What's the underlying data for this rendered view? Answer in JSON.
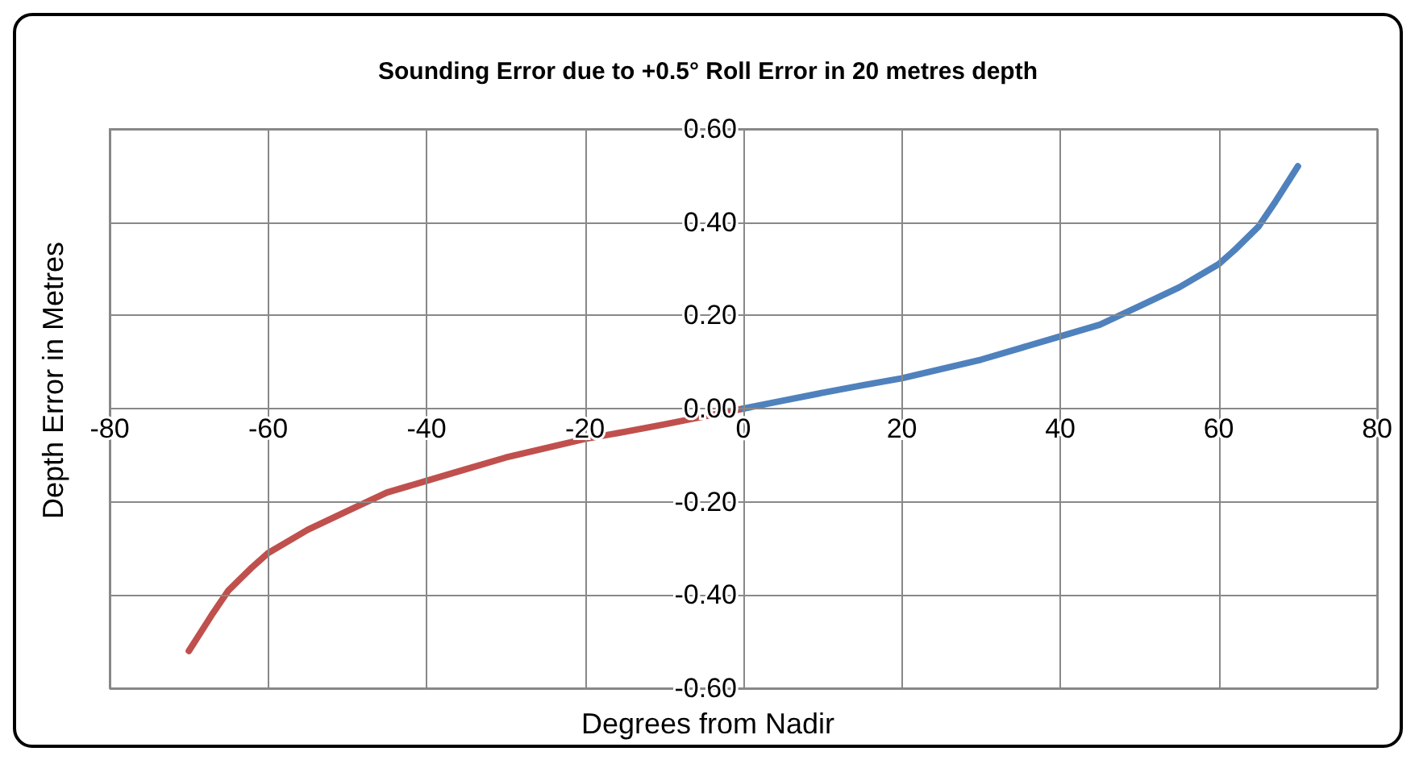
{
  "chart_data": {
    "type": "line",
    "title": "Sounding Error due to +0.5° Roll Error in 20 metres depth",
    "xlabel": "Degrees from Nadir",
    "ylabel": "Depth Error in Metres",
    "series": [
      {
        "color": "#c0504d",
        "x": [
          -70,
          -67,
          -65,
          -62,
          -60,
          -55,
          -50,
          -45,
          -40,
          -35,
          -30,
          -25,
          -20,
          -15,
          -10,
          -5,
          0
        ],
        "values": [
          -0.52,
          -0.44,
          -0.39,
          -0.34,
          -0.31,
          -0.26,
          -0.22,
          -0.18,
          -0.155,
          -0.13,
          -0.105,
          -0.085,
          -0.065,
          -0.05,
          -0.034,
          -0.017,
          0
        ]
      },
      {
        "color": "#4f81bd",
        "x": [
          0,
          5,
          10,
          15,
          20,
          25,
          30,
          35,
          40,
          45,
          50,
          55,
          60,
          62,
          65,
          67,
          70
        ],
        "values": [
          0,
          0.017,
          0.034,
          0.05,
          0.065,
          0.085,
          0.105,
          0.13,
          0.155,
          0.18,
          0.22,
          0.26,
          0.31,
          0.34,
          0.39,
          0.44,
          0.52
        ]
      }
    ],
    "xlim": [
      -80,
      80
    ],
    "xticks": [
      -80,
      -60,
      -40,
      -20,
      0,
      20,
      40,
      60,
      80
    ],
    "ylim": [
      -0.6,
      0.6
    ],
    "yticks": [
      {
        "value": -0.6,
        "label": "-0.60"
      },
      {
        "value": -0.4,
        "label": "-0.40"
      },
      {
        "value": -0.2,
        "label": "-0.20"
      },
      {
        "value": 0,
        "label": "0.00"
      },
      {
        "value": 0.2,
        "label": "0.20"
      },
      {
        "value": 0.4,
        "label": "0.40"
      },
      {
        "value": 0.6,
        "label": "0.60"
      }
    ],
    "grid": true,
    "marker": "none",
    "line_style": "solid"
  }
}
